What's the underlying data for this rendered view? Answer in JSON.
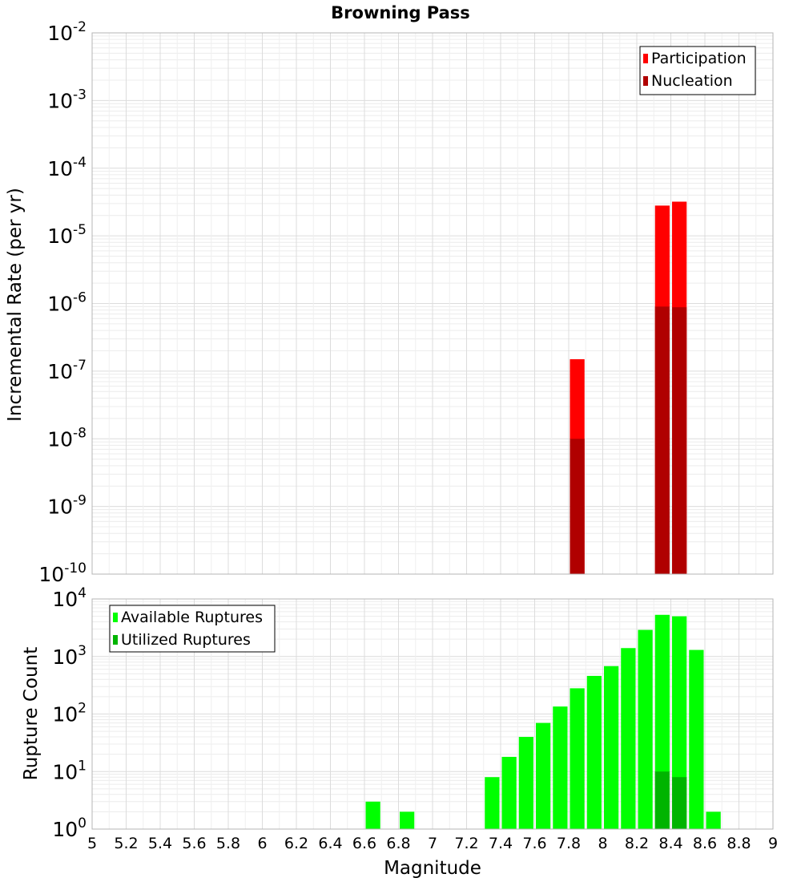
{
  "chart_data": [
    {
      "type": "bar",
      "title": "Browning Pass",
      "ylabel": "Incremental Rate (per yr)",
      "xlabel": "",
      "y_scale": "log",
      "ylim_exp": [
        -10,
        -2
      ],
      "xlim": [
        5,
        9
      ],
      "grid": true,
      "legend_position": "top-right",
      "colors": {
        "Participation": "#ff0000",
        "Nucleation": "#b00000"
      },
      "series": [
        {
          "name": "Participation",
          "x": [
            7.85,
            8.35,
            8.45
          ],
          "values": [
            1.5e-07,
            2.8e-05,
            3.2e-05
          ]
        },
        {
          "name": "Nucleation",
          "x": [
            7.85,
            8.35,
            8.45
          ],
          "values": [
            1e-08,
            9e-07,
            8.8e-07
          ]
        }
      ]
    },
    {
      "type": "bar",
      "title": "",
      "ylabel": "Rupture Count",
      "xlabel": "Magnitude",
      "y_scale": "log",
      "ylim_exp": [
        0,
        4
      ],
      "xlim": [
        5,
        9
      ],
      "grid": true,
      "legend_position": "top-left",
      "colors": {
        "Available Ruptures": "#00ff00",
        "Utilized Ruptures": "#00b400"
      },
      "series": [
        {
          "name": "Available Ruptures",
          "x": [
            6.65,
            6.85,
            6.95,
            7.25,
            7.35,
            7.45,
            7.55,
            7.65,
            7.75,
            7.85,
            7.95,
            8.05,
            8.15,
            8.25,
            8.35,
            8.45,
            8.55,
            8.65
          ],
          "values": [
            3,
            2,
            1,
            1,
            8,
            18,
            40,
            70,
            135,
            280,
            460,
            680,
            1400,
            2900,
            5300,
            5000,
            1300,
            2
          ]
        },
        {
          "name": "Utilized Ruptures",
          "x": [
            7.85,
            8.35,
            8.45
          ],
          "values": [
            1,
            10,
            8
          ]
        }
      ],
      "x_tick_labels": [
        "5",
        "5.2",
        "5.4",
        "5.6",
        "5.8",
        "6",
        "6.2",
        "6.4",
        "6.6",
        "6.8",
        "7",
        "7.2",
        "7.4",
        "7.6",
        "7.8",
        "8",
        "8.2",
        "8.4",
        "8.6",
        "8.8",
        "9"
      ]
    }
  ]
}
